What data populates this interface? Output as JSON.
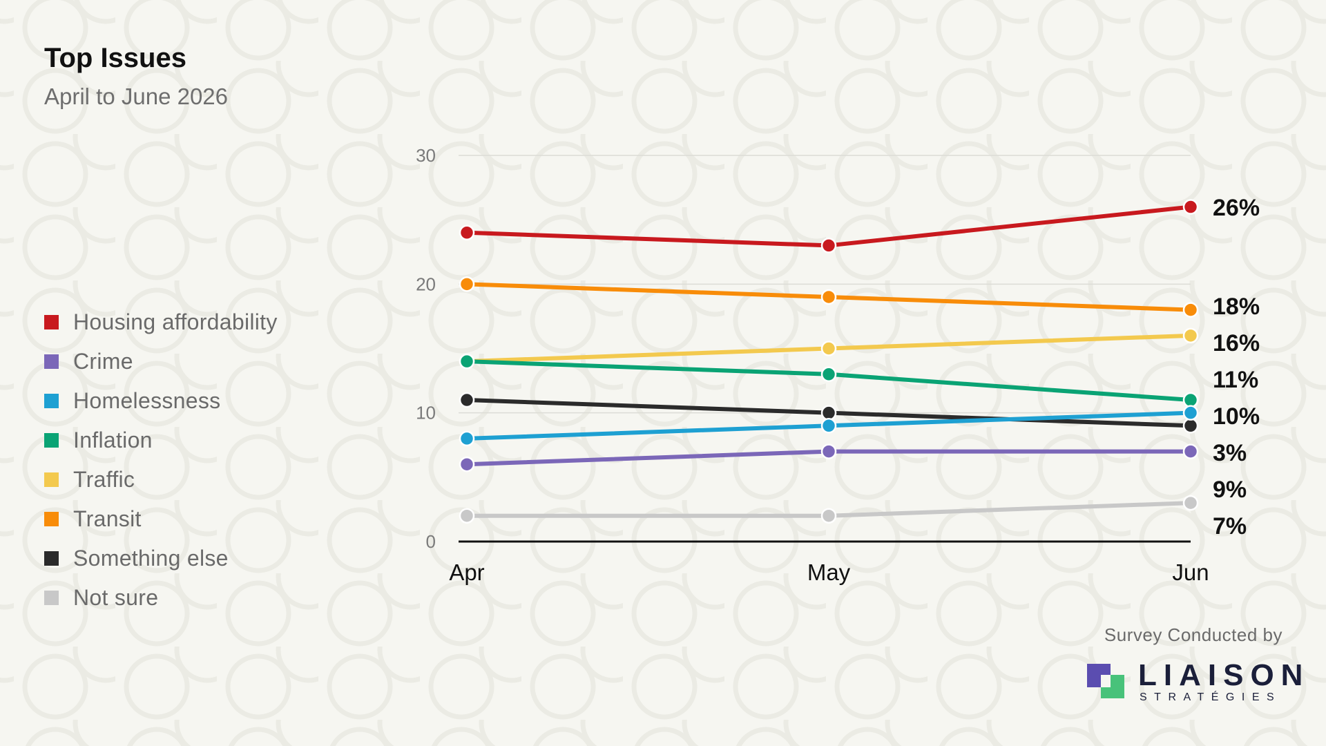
{
  "header": {
    "title": "Top Issues",
    "subtitle": "April to June 2026"
  },
  "legend": [
    {
      "label": "Housing affordability",
      "color": "#c8191e"
    },
    {
      "label": "Crime",
      "color": "#7b67b8"
    },
    {
      "label": "Homelessness",
      "color": "#1ea0d2"
    },
    {
      "label": "Inflation",
      "color": "#0aa374"
    },
    {
      "label": "Traffic",
      "color": "#f3c94e"
    },
    {
      "label": "Transit",
      "color": "#f88c09"
    },
    {
      "label": "Something else",
      "color": "#2b2b2b"
    },
    {
      "label": "Not sure",
      "color": "#c8c8c8"
    }
  ],
  "chart_data": {
    "type": "line",
    "categories": [
      "Apr",
      "May",
      "Jun"
    ],
    "ylim": [
      0,
      30
    ],
    "yticks": [
      0,
      10,
      20,
      30
    ],
    "grid": true,
    "legend_position": "left",
    "series": [
      {
        "name": "Housing affordability",
        "color": "#c8191e",
        "values": [
          24,
          23,
          26
        ]
      },
      {
        "name": "Crime",
        "color": "#7b67b8",
        "values": [
          6,
          7,
          7
        ]
      },
      {
        "name": "Homelessness",
        "color": "#1ea0d2",
        "values": [
          8,
          9,
          10
        ]
      },
      {
        "name": "Inflation",
        "color": "#0aa374",
        "values": [
          14,
          13,
          11
        ]
      },
      {
        "name": "Traffic",
        "color": "#f3c94e",
        "values": [
          14,
          15,
          16
        ]
      },
      {
        "name": "Transit",
        "color": "#f88c09",
        "values": [
          20,
          19,
          18
        ]
      },
      {
        "name": "Something else",
        "color": "#2b2b2b",
        "values": [
          11,
          10,
          9
        ]
      },
      {
        "name": "Not sure",
        "color": "#c8c8c8",
        "values": [
          2,
          2,
          3
        ]
      }
    ],
    "end_labels": [
      "26%",
      "18%",
      "16%",
      "11%",
      "10%",
      "3%",
      "9%",
      "7%"
    ]
  },
  "footer": {
    "credit": "Survey Conducted by",
    "logo_name": "LIAISON",
    "logo_tagline": "STRATÉGIES",
    "logo_colors": [
      "#5b4db0",
      "#48c27a"
    ]
  }
}
